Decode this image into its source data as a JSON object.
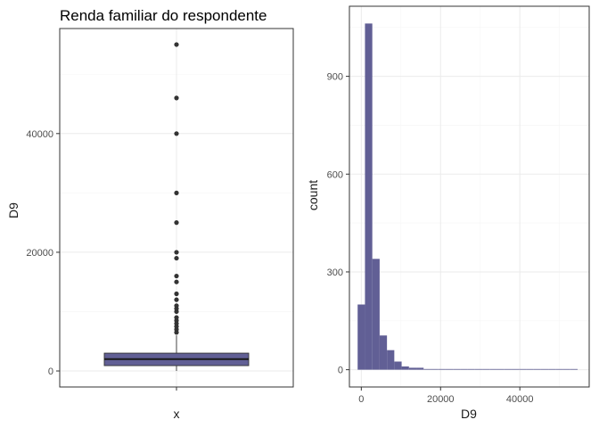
{
  "colors": {
    "fill": "#615F95",
    "grid_major": "#ebebeb",
    "grid_minor": "#f5f5f5",
    "panel_border": "#333333",
    "points": "#333333"
  },
  "chart_data": [
    {
      "type": "boxplot",
      "title": "Renda familiar do respondente",
      "xlabel": "x",
      "ylabel": "D9",
      "categories": [
        "x"
      ],
      "ylim": [
        -2700,
        57700
      ],
      "yticks": [
        0,
        20000,
        40000
      ],
      "ytick_labels": [
        "0",
        "20000",
        "40000"
      ],
      "box": {
        "min": 0,
        "q1": 900,
        "median": 2000,
        "q3": 3000,
        "max": 6000
      },
      "outliers": [
        6500,
        7000,
        7500,
        8000,
        8500,
        9000,
        10000,
        10500,
        11000,
        12000,
        13000,
        15000,
        16000,
        19000,
        20000,
        25000,
        30000,
        40000,
        46000,
        55000
      ]
    },
    {
      "type": "histogram",
      "title": "",
      "xlabel": "D9",
      "ylabel": "count",
      "xlim": [
        -3000,
        57500
      ],
      "ylim": [
        -53,
        1115
      ],
      "xticks": [
        0,
        20000,
        40000
      ],
      "xtick_labels": [
        "0",
        "20000",
        "40000"
      ],
      "yticks": [
        0,
        300,
        600,
        900
      ],
      "ytick_labels": [
        "0",
        "300",
        "600",
        "900"
      ],
      "bin_width": 1850,
      "bins_start": -925,
      "counts": [
        200,
        1062,
        340,
        105,
        60,
        25,
        10,
        6,
        6,
        0,
        1,
        2,
        1,
        0,
        1,
        0,
        1,
        0,
        0,
        0,
        0,
        0,
        1,
        0,
        0,
        1,
        0,
        0,
        0,
        1
      ]
    }
  ]
}
